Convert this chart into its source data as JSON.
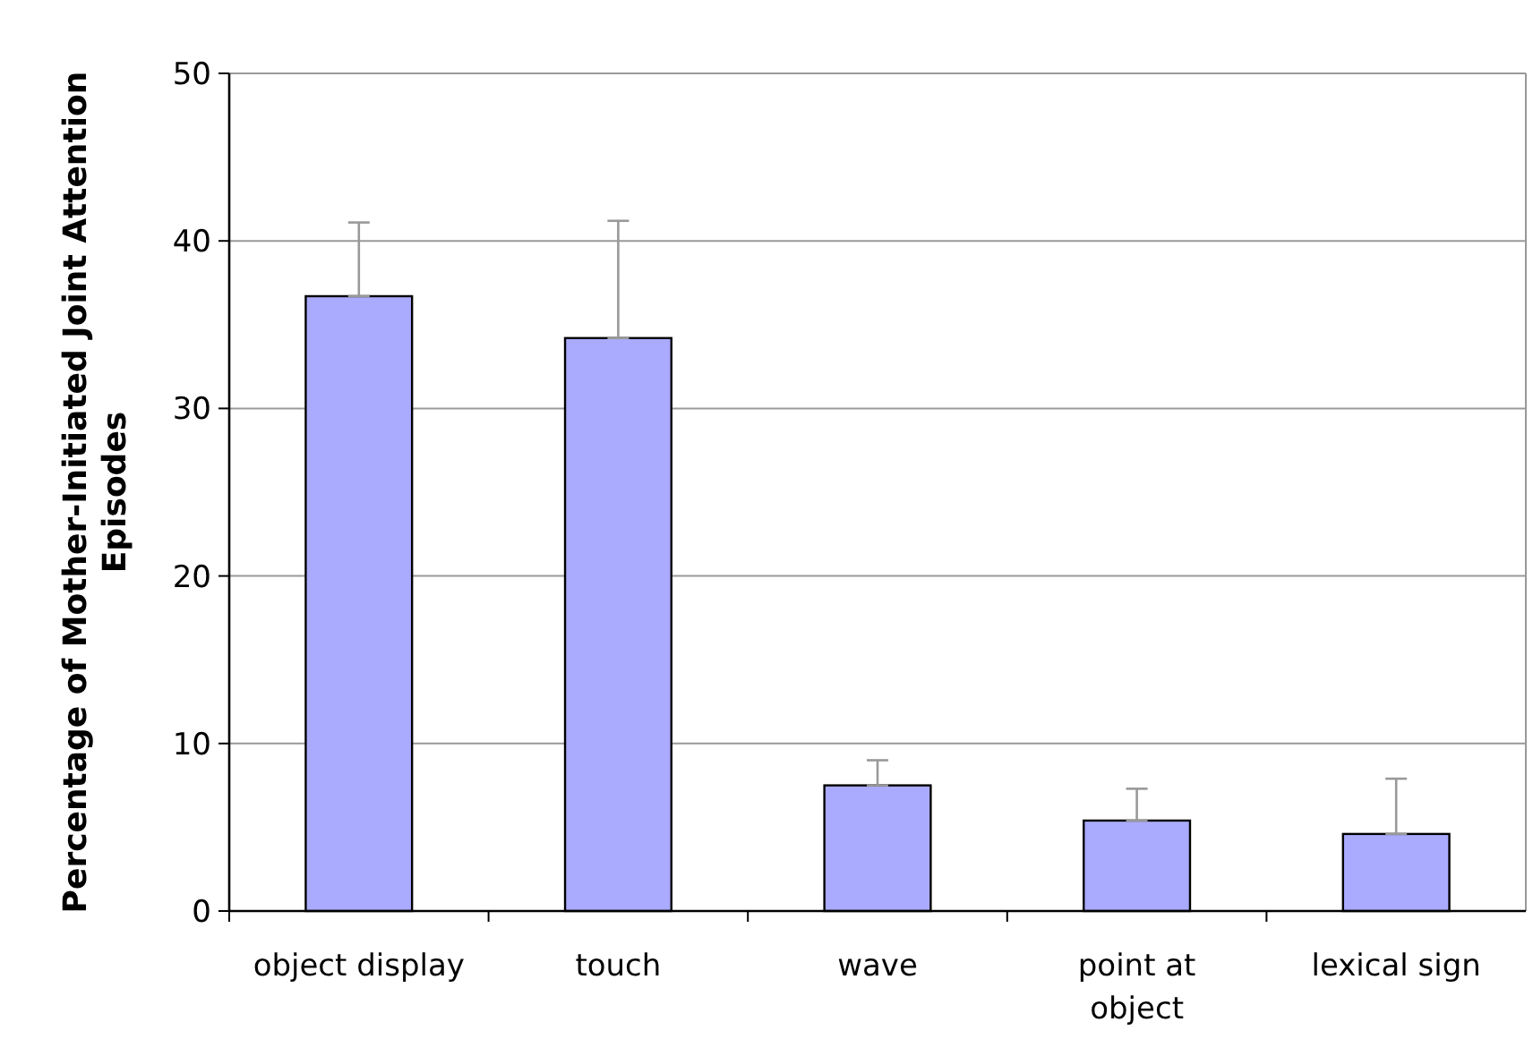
{
  "chart_data": {
    "type": "bar",
    "ylabel": "Percentage of Mother-Initiated Joint Attention Episodes",
    "categories": [
      "object display",
      "touch",
      "wave",
      "point at object",
      "lexical sign"
    ],
    "values": [
      36.7,
      34.2,
      7.5,
      5.4,
      4.6
    ],
    "errors": [
      [
        36.7,
        41.1
      ],
      [
        34.2,
        41.2
      ],
      [
        7.5,
        9.0
      ],
      [
        5.4,
        7.3
      ],
      [
        4.6,
        7.9
      ]
    ],
    "color": "#aaaaff",
    "ylim": [
      0,
      50
    ],
    "yticks": [
      0,
      10,
      20,
      30,
      40,
      50
    ],
    "grid": "y"
  }
}
